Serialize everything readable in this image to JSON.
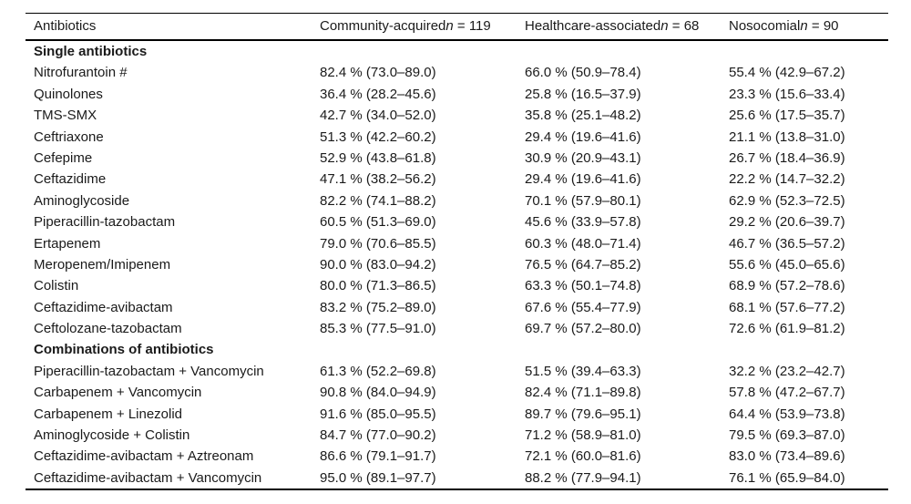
{
  "table": {
    "columns": {
      "antibiotics_header": "Antibiotics",
      "group1": {
        "prefix": "Community-acquired",
        "nvar": "n",
        "count": " = 119"
      },
      "group2": {
        "prefix": "Healthcare-associated",
        "nvar": "n",
        "count": " = 68"
      },
      "group3": {
        "prefix": "Nosocomial",
        "nvar": "n",
        "count": " = 90"
      }
    },
    "sections": [
      {
        "header": "Single antibiotics",
        "rows": [
          {
            "name": "Nitrofurantoin #",
            "values": [
              "82.4 % (73.0–89.0)",
              "66.0 % (50.9–78.4)",
              "55.4 % (42.9–67.2)"
            ]
          },
          {
            "name": "Quinolones",
            "values": [
              "36.4 % (28.2–45.6)",
              "25.8 % (16.5–37.9)",
              "23.3 % (15.6–33.4)"
            ]
          },
          {
            "name": "TMS-SMX",
            "values": [
              "42.7 % (34.0–52.0)",
              "35.8 % (25.1–48.2)",
              "25.6 % (17.5–35.7)"
            ]
          },
          {
            "name": "Ceftriaxone",
            "values": [
              "51.3 % (42.2–60.2)",
              "29.4 % (19.6–41.6)",
              "21.1 % (13.8–31.0)"
            ]
          },
          {
            "name": "Cefepime",
            "values": [
              "52.9 % (43.8–61.8)",
              "30.9 % (20.9–43.1)",
              "26.7 % (18.4–36.9)"
            ]
          },
          {
            "name": "Ceftazidime",
            "values": [
              "47.1 % (38.2–56.2)",
              "29.4 % (19.6–41.6)",
              "22.2 % (14.7–32.2)"
            ]
          },
          {
            "name": "Aminoglycoside",
            "values": [
              "82.2 % (74.1–88.2)",
              "70.1 % (57.9–80.1)",
              "62.9 % (52.3–72.5)"
            ]
          },
          {
            "name": "Piperacillin-tazobactam",
            "values": [
              "60.5 % (51.3–69.0)",
              "45.6 % (33.9–57.8)",
              "29.2 % (20.6–39.7)"
            ]
          },
          {
            "name": "Ertapenem",
            "values": [
              "79.0 % (70.6–85.5)",
              "60.3 % (48.0–71.4)",
              "46.7 % (36.5–57.2)"
            ]
          },
          {
            "name": "Meropenem/Imipenem",
            "values": [
              "90.0 % (83.0–94.2)",
              "76.5 % (64.7–85.2)",
              "55.6 % (45.0–65.6)"
            ]
          },
          {
            "name": "Colistin",
            "values": [
              "80.0 % (71.3–86.5)",
              "63.3 % (50.1–74.8)",
              "68.9 % (57.2–78.6)"
            ]
          },
          {
            "name": "Ceftazidime-avibactam",
            "values": [
              "83.2 % (75.2–89.0)",
              "67.6 % (55.4–77.9)",
              "68.1 % (57.6–77.2)"
            ]
          },
          {
            "name": "Ceftolozane-tazobactam",
            "values": [
              "85.3 % (77.5–91.0)",
              "69.7 % (57.2–80.0)",
              "72.6 % (61.9–81.2)"
            ]
          }
        ]
      },
      {
        "header": "Combinations of antibiotics",
        "rows": [
          {
            "name": "Piperacillin-tazobactam + Vancomycin",
            "values": [
              "61.3 % (52.2–69.8)",
              "51.5 % (39.4–63.3)",
              "32.2 % (23.2–42.7)"
            ]
          },
          {
            "name": "Carbapenem + Vancomycin",
            "values": [
              "90.8 % (84.0–94.9)",
              "82.4 % (71.1–89.8)",
              "57.8 % (47.2–67.7)"
            ]
          },
          {
            "name": "Carbapenem + Linezolid",
            "values": [
              "91.6 % (85.0–95.5)",
              "89.7 % (79.6–95.1)",
              "64.4 % (53.9–73.8)"
            ]
          },
          {
            "name": "Aminoglycoside + Colistin",
            "values": [
              "84.7 % (77.0–90.2)",
              "71.2 % (58.9–81.0)",
              "79.5 % (69.3–87.0)"
            ]
          },
          {
            "name": "Ceftazidime-avibactam + Aztreonam",
            "values": [
              "86.6 % (79.1–91.7)",
              "72.1 % (60.0–81.6)",
              "83.0 % (73.4–89.6)"
            ]
          },
          {
            "name": "Ceftazidime-avibactam + Vancomycin",
            "values": [
              "95.0 % (89.1–97.7)",
              "88.2 % (77.9–94.1)",
              "76.1 % (65.9–84.0)"
            ]
          }
        ]
      }
    ]
  }
}
